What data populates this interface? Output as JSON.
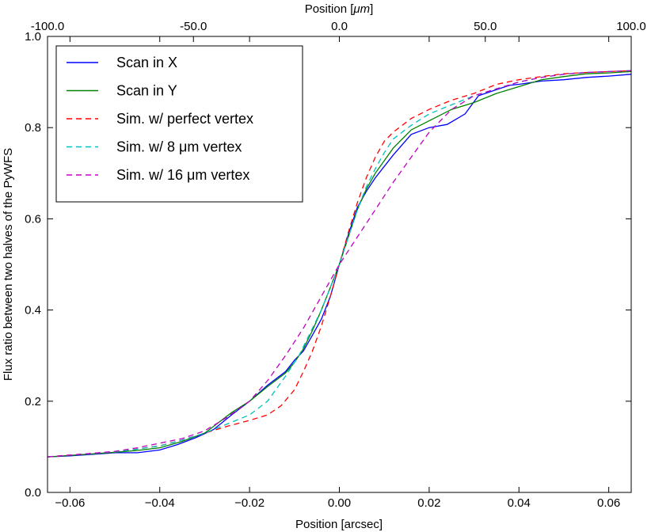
{
  "chart_data": {
    "type": "line",
    "xlabel": "Position [arcsec]",
    "x2label_prefix": "Position [",
    "x2label_unit": "μm",
    "x2label_suffix": "]",
    "ylabel": "Flux ratio between two halves of the PyWFS",
    "xlim": [
      -0.065,
      0.065
    ],
    "ylim": [
      0.0,
      1.0
    ],
    "x2lim": [
      -100.0,
      100.0
    ],
    "xticks": [
      -0.06,
      -0.04,
      -0.02,
      0.0,
      0.02,
      0.04,
      0.06
    ],
    "xtick_labels": [
      "−0.06",
      "−0.04",
      "−0.02",
      "0.00",
      "0.02",
      "0.04",
      "0.06"
    ],
    "yticks": [
      0.0,
      0.2,
      0.4,
      0.6,
      0.8,
      1.0
    ],
    "ytick_labels": [
      "0.0",
      "0.2",
      "0.4",
      "0.6",
      "0.8",
      "1.0"
    ],
    "x2ticks": [
      -100.0,
      -50.0,
      0.0,
      50.0,
      100.0
    ],
    "x2tick_labels": [
      "-100.0",
      "-50.0",
      "0.0",
      "50.0",
      "100.0"
    ],
    "legend_position": "top-left",
    "series": [
      {
        "name": "Scan in X",
        "color": "#0000ff",
        "style": "solid",
        "x": [
          -0.065,
          -0.06,
          -0.05,
          -0.045,
          -0.04,
          -0.036,
          -0.032,
          -0.028,
          -0.024,
          -0.02,
          -0.016,
          -0.012,
          -0.01,
          -0.008,
          -0.006,
          -0.004,
          -0.002,
          0.0,
          0.002,
          0.004,
          0.006,
          0.008,
          0.012,
          0.016,
          0.02,
          0.024,
          0.028,
          0.031,
          0.034,
          0.038,
          0.04,
          0.045,
          0.05,
          0.055,
          0.06,
          0.065
        ],
        "y": [
          0.078,
          0.08,
          0.087,
          0.087,
          0.093,
          0.105,
          0.12,
          0.138,
          0.17,
          0.2,
          0.235,
          0.265,
          0.29,
          0.31,
          0.345,
          0.38,
          0.43,
          0.5,
          0.565,
          0.625,
          0.66,
          0.69,
          0.74,
          0.785,
          0.8,
          0.807,
          0.83,
          0.87,
          0.88,
          0.893,
          0.895,
          0.902,
          0.905,
          0.91,
          0.913,
          0.917
        ]
      },
      {
        "name": "Scan in Y",
        "color": "#008000",
        "style": "solid",
        "x": [
          -0.065,
          -0.06,
          -0.05,
          -0.045,
          -0.04,
          -0.035,
          -0.03,
          -0.028,
          -0.024,
          -0.02,
          -0.016,
          -0.012,
          -0.01,
          -0.008,
          -0.006,
          -0.004,
          -0.002,
          0.0,
          0.002,
          0.004,
          0.006,
          0.008,
          0.012,
          0.016,
          0.02,
          0.025,
          0.03,
          0.035,
          0.04,
          0.045,
          0.05,
          0.055,
          0.06,
          0.065
        ],
        "y": [
          0.078,
          0.081,
          0.088,
          0.092,
          0.098,
          0.112,
          0.13,
          0.145,
          0.175,
          0.2,
          0.232,
          0.262,
          0.285,
          0.315,
          0.355,
          0.4,
          0.45,
          0.5,
          0.56,
          0.62,
          0.665,
          0.7,
          0.755,
          0.795,
          0.815,
          0.84,
          0.855,
          0.875,
          0.89,
          0.905,
          0.912,
          0.918,
          0.92,
          0.923
        ]
      },
      {
        "name": "Sim. w/ perfect vertex",
        "color": "#ff0000",
        "style": "dashed",
        "x": [
          -0.065,
          -0.06,
          -0.05,
          -0.045,
          -0.04,
          -0.035,
          -0.03,
          -0.025,
          -0.02,
          -0.016,
          -0.013,
          -0.01,
          -0.008,
          -0.006,
          -0.004,
          -0.002,
          0.0,
          0.002,
          0.004,
          0.006,
          0.008,
          0.01,
          0.012,
          0.016,
          0.02,
          0.025,
          0.03,
          0.035,
          0.04,
          0.045,
          0.05,
          0.055,
          0.06,
          0.065
        ],
        "y": [
          0.078,
          0.082,
          0.089,
          0.095,
          0.102,
          0.115,
          0.13,
          0.145,
          0.158,
          0.17,
          0.19,
          0.225,
          0.265,
          0.31,
          0.365,
          0.43,
          0.5,
          0.57,
          0.635,
          0.69,
          0.735,
          0.77,
          0.79,
          0.82,
          0.84,
          0.86,
          0.875,
          0.895,
          0.905,
          0.912,
          0.918,
          0.921,
          0.923,
          0.925
        ]
      },
      {
        "name": "Sim. w/ 8 μm vertex",
        "color": "#00bfbf",
        "style": "dashed",
        "x": [
          -0.065,
          -0.06,
          -0.05,
          -0.045,
          -0.04,
          -0.035,
          -0.03,
          -0.025,
          -0.02,
          -0.016,
          -0.012,
          -0.009,
          -0.006,
          -0.004,
          -0.002,
          0.0,
          0.002,
          0.004,
          0.006,
          0.008,
          0.01,
          0.012,
          0.016,
          0.02,
          0.025,
          0.03,
          0.035,
          0.04,
          0.045,
          0.05,
          0.055,
          0.06,
          0.065
        ],
        "y": [
          0.078,
          0.082,
          0.089,
          0.095,
          0.102,
          0.115,
          0.13,
          0.15,
          0.17,
          0.2,
          0.255,
          0.3,
          0.36,
          0.4,
          0.45,
          0.5,
          0.56,
          0.62,
          0.67,
          0.71,
          0.745,
          0.775,
          0.805,
          0.83,
          0.85,
          0.87,
          0.885,
          0.9,
          0.91,
          0.917,
          0.921,
          0.923,
          0.925
        ]
      },
      {
        "name": "Sim. w/ 16 μm vertex",
        "color": "#bf00bf",
        "style": "dashed",
        "x": [
          -0.065,
          -0.06,
          -0.05,
          -0.045,
          -0.04,
          -0.035,
          -0.03,
          -0.025,
          -0.02,
          -0.016,
          -0.012,
          -0.008,
          -0.004,
          0.0,
          0.004,
          0.008,
          0.012,
          0.016,
          0.02,
          0.025,
          0.03,
          0.035,
          0.04,
          0.045,
          0.05,
          0.055,
          0.06,
          0.065
        ],
        "y": [
          0.078,
          0.082,
          0.09,
          0.098,
          0.108,
          0.118,
          0.135,
          0.165,
          0.2,
          0.245,
          0.3,
          0.36,
          0.43,
          0.5,
          0.56,
          0.62,
          0.68,
          0.735,
          0.79,
          0.84,
          0.87,
          0.885,
          0.9,
          0.91,
          0.917,
          0.921,
          0.923,
          0.925
        ]
      }
    ]
  }
}
